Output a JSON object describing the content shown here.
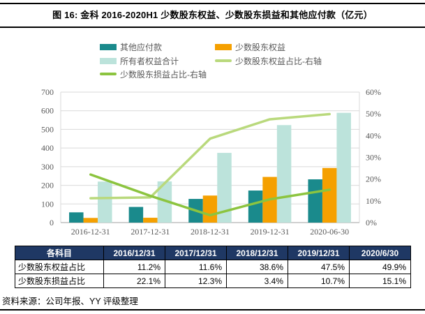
{
  "figure": {
    "title": "图 16: 金科 2016-2020H1 少数股东权益、少数股东损益和其他应付款（亿元）",
    "source_note": "资料来源：公司年报、YY 评级整理"
  },
  "colors": {
    "teal": "#1A8A8C",
    "orange": "#F5A000",
    "mint": "#BCE3DB",
    "light_green": "#B9D97C",
    "dark_green": "#8CC43F",
    "grid": "#D9D9D9",
    "axis_line": "#BFBFBF",
    "axis_text": "#595959",
    "table_header_bg": "#1F3864"
  },
  "chart_data": {
    "type": "bar",
    "subtype": "grouped bars + 2 lines on right axis",
    "categories": [
      "2016-12-31",
      "2017-12-31",
      "2018-12-31",
      "2019-12-31",
      "2020-06-30"
    ],
    "bar_series": [
      {
        "name": "其他应付款",
        "color_key": "teal",
        "values": [
          55,
          84,
          127,
          172,
          232
        ]
      },
      {
        "name": "少数股东权益",
        "color_key": "orange",
        "values": [
          25,
          26,
          145,
          245,
          293
        ]
      },
      {
        "name": "所有者权益合计",
        "color_key": "mint",
        "values": [
          220,
          221,
          374,
          523,
          589
        ]
      }
    ],
    "line_series": [
      {
        "name": "少数股东权益占比-右轴",
        "color_key": "light_green",
        "axis": "right",
        "values": [
          11.2,
          11.6,
          38.6,
          47.5,
          49.9
        ]
      },
      {
        "name": "少数股东损益占比-右轴",
        "color_key": "dark_green",
        "axis": "right",
        "values": [
          22.1,
          12.3,
          3.4,
          10.7,
          15.1
        ]
      }
    ],
    "left_axis": {
      "min": 0,
      "max": 700,
      "ticks": [
        "0",
        "100",
        "200",
        "300",
        "400",
        "500",
        "600",
        "700"
      ]
    },
    "right_axis": {
      "min": 0,
      "max": 60,
      "ticks": [
        "0%",
        "10%",
        "20%",
        "30%",
        "40%",
        "50%",
        "60%"
      ]
    },
    "grid": true,
    "legend_position": "top"
  },
  "table": {
    "header": [
      "各科目",
      "2016/12/31",
      "2017/12/31",
      "2018/12/31",
      "2019/12/31",
      "2020/6/30"
    ],
    "rows": [
      {
        "label": "少数股东权益占比",
        "values": [
          "11.2%",
          "11.6%",
          "38.6%",
          "47.5%",
          "49.9%"
        ]
      },
      {
        "label": "少数股东损益占比",
        "values": [
          "22.1%",
          "12.3%",
          "3.4%",
          "10.7%",
          "15.1%"
        ]
      }
    ]
  }
}
